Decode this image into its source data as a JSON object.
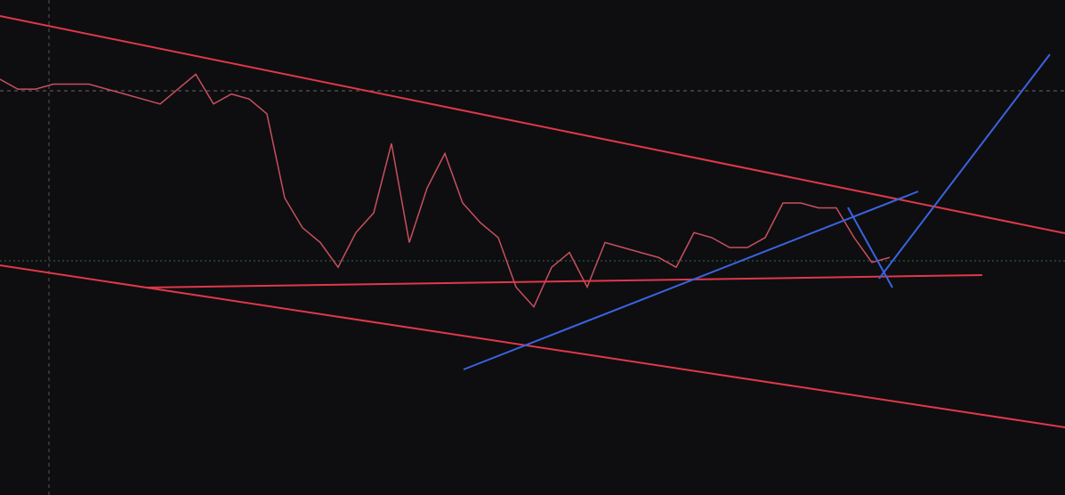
{
  "chart_data": {
    "type": "line",
    "color": "#c8505e",
    "ylim": [
      0,
      100
    ],
    "values": [
      84,
      82,
      82,
      83,
      83,
      83,
      82,
      81,
      80,
      79,
      82,
      85,
      79,
      81,
      80,
      77,
      60,
      54,
      51,
      46,
      53,
      57,
      71,
      51,
      62,
      69,
      59,
      55,
      52,
      42,
      38,
      46,
      49,
      42,
      51,
      50,
      49,
      48,
      46,
      53,
      52,
      50,
      50,
      52,
      59,
      59,
      58,
      58,
      52,
      47,
      48
    ]
  }
}
